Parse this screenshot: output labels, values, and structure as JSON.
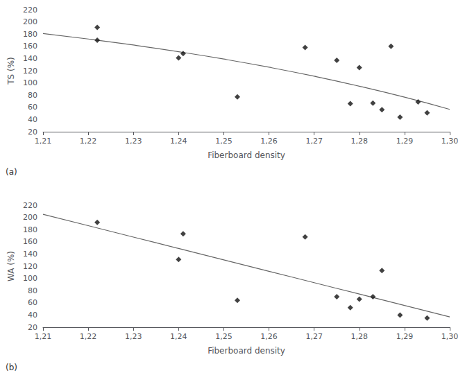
{
  "chart_data": [
    {
      "type": "scatter",
      "xlabel": "Fiberboard density",
      "ylabel": "TS (%)",
      "annotation": "(a)",
      "xlim": [
        1.21,
        1.3
      ],
      "ylim": [
        20,
        220
      ],
      "xticks": [
        {
          "value": 1.21,
          "label": "1,21"
        },
        {
          "value": 1.22,
          "label": "1,22"
        },
        {
          "value": 1.23,
          "label": "1,23"
        },
        {
          "value": 1.24,
          "label": "1,24"
        },
        {
          "value": 1.25,
          "label": "1,25"
        },
        {
          "value": 1.26,
          "label": "1,26"
        },
        {
          "value": 1.27,
          "label": "1,27"
        },
        {
          "value": 1.28,
          "label": "1,28"
        },
        {
          "value": 1.29,
          "label": "1,29"
        },
        {
          "value": 1.3,
          "label": "1,30"
        }
      ],
      "yticks": [
        20,
        40,
        60,
        80,
        100,
        120,
        140,
        160,
        180,
        200,
        220
      ],
      "grid": false,
      "series": [
        {
          "type": "scatter",
          "marker": "diamond",
          "color": "#111111",
          "x": [
            1.222,
            1.222,
            1.24,
            1.241,
            1.253,
            1.268,
            1.275,
            1.278,
            1.28,
            1.283,
            1.285,
            1.287,
            1.289,
            1.293,
            1.295
          ],
          "values": [
            191,
            170,
            141,
            148,
            77,
            158,
            137,
            66,
            125,
            67,
            56,
            160,
            44,
            69,
            51
          ]
        },
        {
          "type": "line",
          "line_style": "solid",
          "color": "#666666",
          "x": [
            1.21,
            1.22,
            1.23,
            1.24,
            1.25,
            1.26,
            1.27,
            1.28,
            1.29,
            1.3
          ],
          "values": [
            180.98,
            172.02,
            162.12,
            151.18,
            139.09,
            125.73,
            110.96,
            94.64,
            76.61,
            56.67
          ]
        }
      ]
    },
    {
      "type": "scatter",
      "xlabel": "Fiberboard density",
      "ylabel": "WA (%)",
      "annotation": "(b)",
      "xlim": [
        1.21,
        1.3
      ],
      "ylim": [
        20,
        220
      ],
      "xticks": [
        {
          "value": 1.21,
          "label": "1,21"
        },
        {
          "value": 1.22,
          "label": "1,22"
        },
        {
          "value": 1.23,
          "label": "1,23"
        },
        {
          "value": 1.24,
          "label": "1,24"
        },
        {
          "value": 1.25,
          "label": "1,25"
        },
        {
          "value": 1.26,
          "label": "1,26"
        },
        {
          "value": 1.27,
          "label": "1,27"
        },
        {
          "value": 1.28,
          "label": "1,28"
        },
        {
          "value": 1.29,
          "label": "1,29"
        },
        {
          "value": 1.3,
          "label": "1,30"
        }
      ],
      "yticks": [
        20,
        40,
        60,
        80,
        100,
        120,
        140,
        160,
        180,
        200,
        220
      ],
      "grid": false,
      "series": [
        {
          "type": "scatter",
          "marker": "diamond",
          "color": "#111111",
          "x": [
            1.222,
            1.24,
            1.241,
            1.253,
            1.268,
            1.275,
            1.278,
            1.28,
            1.283,
            1.285,
            1.289,
            1.295
          ],
          "values": [
            192,
            131,
            173,
            64,
            168,
            70,
            52,
            66,
            70,
            113,
            40,
            35
          ]
        },
        {
          "type": "line",
          "line_style": "solid",
          "color": "#666666",
          "x": [
            1.21,
            1.22,
            1.23,
            1.24,
            1.25,
            1.26,
            1.27,
            1.28,
            1.29,
            1.3
          ],
          "values": [
            205.12,
            186.43,
            167.75,
            149.06,
            130.38,
            111.69,
            93.01,
            74.32,
            55.63,
            36.95
          ]
        }
      ]
    }
  ]
}
